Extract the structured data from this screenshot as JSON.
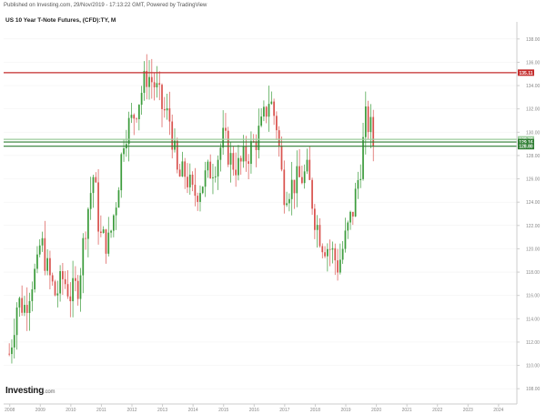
{
  "header": {
    "published": "Published on Investing.com, 29/Nov/2019 - 17:13:22 GMT, Powered by TradingView",
    "title": "US 10 Year T-Note Futures, (CFD):TY, M"
  },
  "logo": {
    "main": "Investing",
    "suffix": ".com"
  },
  "colors": {
    "up": "#3c9c3c",
    "down": "#d9534f",
    "resistance": "#c42b2b",
    "support_dark": "#2e7d32",
    "support_light": "#9ccc9c",
    "axis": "#cccccc",
    "grid": "#f0f0f0"
  },
  "chart_data": {
    "type": "candlestick",
    "title": "US 10 Year T-Note Futures, (CFD):TY, M",
    "x_ticks": [
      "2008",
      "2009",
      "2010",
      "2011",
      "2012",
      "2013",
      "2014",
      "2015",
      "2016",
      "2017",
      "2018",
      "2019",
      "2020",
      "2021",
      "2022",
      "2023",
      "2024"
    ],
    "y_ticks": [
      "108.00",
      "110.00",
      "112.00",
      "114.00",
      "116.00",
      "118.00",
      "120.00",
      "122.00",
      "124.00",
      "126.00",
      "128.00",
      "130.00",
      "132.00",
      "134.00",
      "136.00",
      "138.00"
    ],
    "ylim": [
      107,
      139
    ],
    "xlim": [
      2007.8,
      2024.6
    ],
    "horizontal_lines": [
      {
        "value": 135.11,
        "label": "135.11",
        "color": "#c42b2b"
      },
      {
        "value": 129.39,
        "label": "129.39",
        "color": "#9ccc9c"
      },
      {
        "value": 129.16,
        "label": "129.16",
        "color": "#2e7d32"
      },
      {
        "value": 128.8,
        "label": "128.80",
        "color": "#2e7d32"
      }
    ],
    "close_series": [
      {
        "t": 2008.0,
        "c": 111.0
      },
      {
        "t": 2008.25,
        "c": 115.5
      },
      {
        "t": 2008.5,
        "c": 115.0
      },
      {
        "t": 2008.75,
        "c": 117.5
      },
      {
        "t": 2008.95,
        "c": 118.5
      },
      {
        "t": 2009.0,
        "c": 121.0
      },
      {
        "t": 2009.25,
        "c": 118.0
      },
      {
        "t": 2009.5,
        "c": 116.0
      },
      {
        "t": 2009.75,
        "c": 117.5
      },
      {
        "t": 2010.0,
        "c": 116.0
      },
      {
        "t": 2010.25,
        "c": 117.0
      },
      {
        "t": 2010.5,
        "c": 122.5
      },
      {
        "t": 2010.75,
        "c": 126.5
      },
      {
        "t": 2010.95,
        "c": 121.0
      },
      {
        "t": 2011.25,
        "c": 120.5
      },
      {
        "t": 2011.5,
        "c": 124.5
      },
      {
        "t": 2011.75,
        "c": 130.0
      },
      {
        "t": 2012.0,
        "c": 131.0
      },
      {
        "t": 2012.25,
        "c": 133.0
      },
      {
        "t": 2012.5,
        "c": 135.0
      },
      {
        "t": 2012.75,
        "c": 134.0
      },
      {
        "t": 2013.0,
        "c": 132.0
      },
      {
        "t": 2013.25,
        "c": 131.0
      },
      {
        "t": 2013.5,
        "c": 126.0
      },
      {
        "t": 2013.75,
        "c": 126.5
      },
      {
        "t": 2014.0,
        "c": 124.5
      },
      {
        "t": 2014.25,
        "c": 125.5
      },
      {
        "t": 2014.5,
        "c": 126.5
      },
      {
        "t": 2014.75,
        "c": 127.5
      },
      {
        "t": 2015.0,
        "c": 129.5
      },
      {
        "t": 2015.25,
        "c": 127.5
      },
      {
        "t": 2015.5,
        "c": 127.0
      },
      {
        "t": 2015.75,
        "c": 128.0
      },
      {
        "t": 2016.0,
        "c": 129.0
      },
      {
        "t": 2016.25,
        "c": 130.5
      },
      {
        "t": 2016.5,
        "c": 133.0
      },
      {
        "t": 2016.75,
        "c": 130.5
      },
      {
        "t": 2016.95,
        "c": 125.0
      },
      {
        "t": 2017.25,
        "c": 125.5
      },
      {
        "t": 2017.5,
        "c": 126.0
      },
      {
        "t": 2017.75,
        "c": 126.5
      },
      {
        "t": 2018.0,
        "c": 122.5
      },
      {
        "t": 2018.25,
        "c": 120.5
      },
      {
        "t": 2018.5,
        "c": 120.0
      },
      {
        "t": 2018.75,
        "c": 118.5
      },
      {
        "t": 2018.95,
        "c": 120.5
      },
      {
        "t": 2019.25,
        "c": 123.5
      },
      {
        "t": 2019.5,
        "c": 127.5
      },
      {
        "t": 2019.65,
        "c": 131.0
      },
      {
        "t": 2019.8,
        "c": 130.5
      },
      {
        "t": 2019.9,
        "c": 129.0
      }
    ]
  }
}
